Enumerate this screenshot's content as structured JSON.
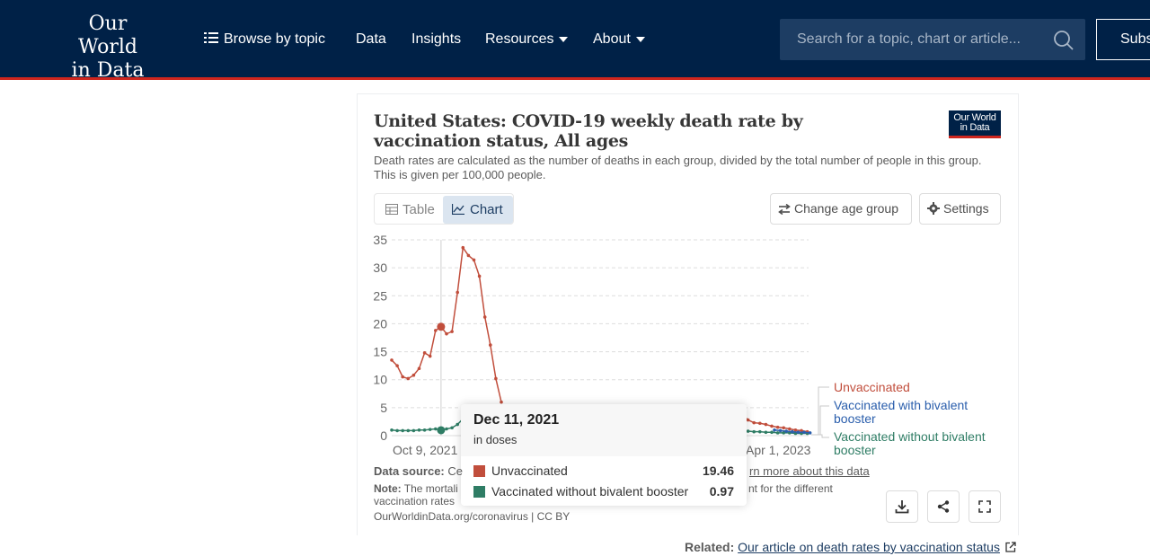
{
  "header": {
    "logo_line1": "Our World",
    "logo_line2": "in Data",
    "nav": {
      "browse": "Browse by topic",
      "data": "Data",
      "insights": "Insights",
      "resources": "Resources",
      "about": "About"
    },
    "search_placeholder": "Search for a topic, chart or article...",
    "subscribe": "Subscribe"
  },
  "card": {
    "title": "United States: COVID-19 weekly death rate by vaccination status, All ages",
    "subtitle": "Death rates are calculated as the number of deaths in each group, divided by the total number of people in this group. This is given per 100,000 people.",
    "badge_line1": "Our World",
    "badge_line2": "in Data",
    "tabs": {
      "table": "Table",
      "chart": "Chart"
    },
    "change_age_group": "Change age group",
    "settings": "Settings"
  },
  "chart_data": {
    "type": "line",
    "y_ticks": [
      "0",
      "5",
      "10",
      "15",
      "20",
      "25",
      "30",
      "35"
    ],
    "ylim": [
      0,
      35
    ],
    "x_ticks": [
      "Oct 9, 2021",
      "Apr 1, 2023"
    ],
    "grid": true,
    "legend_placement": "right",
    "series": [
      {
        "name": "Unvaccinated",
        "color": "#c14e3c",
        "values": [
          13.5,
          12.5,
          10.5,
          10.2,
          10.8,
          12.0,
          14.8,
          14.2,
          18.8,
          19.46,
          18.2,
          18.6,
          25.6,
          33.6,
          32.2,
          31.4,
          28.5,
          21.2,
          16.2,
          10.2,
          6.0
        ]
      },
      {
        "name": "Vaccinated with bivalent booster",
        "color": "#2a5eac",
        "values": [
          1.0,
          0.9,
          0.8,
          0.7,
          0.6,
          0.6,
          0.5
        ]
      },
      {
        "name": "Vaccinated without bivalent booster",
        "color": "#2f7d65",
        "values": [
          1.0,
          0.9,
          0.9,
          0.9,
          0.9,
          1.0,
          1.0,
          1.1,
          1.2,
          0.97,
          1.2,
          1.4,
          2.0,
          3.0,
          3.6
        ]
      }
    ],
    "tail_unvaccinated": [
      3.8,
      2.8,
      2.3,
      2.2,
      2.0,
      1.7,
      1.5,
      1.4,
      1.2,
      1.0,
      0.9,
      0.7
    ],
    "tail_without_bivalent": [
      0.9,
      0.8,
      0.7,
      0.7,
      0.6,
      0.6,
      0.5,
      0.5,
      0.5,
      0.4,
      0.4,
      0.4
    ],
    "legend": {
      "unvax": "Unvaccinated",
      "biv_line1": "Vaccinated with bivalent",
      "biv_line2": "booster",
      "nobiv_line1": "Vaccinated without bivalent",
      "nobiv_line2": "booster"
    }
  },
  "tooltip": {
    "date": "Dec 11, 2021",
    "unit": "in doses",
    "rows": [
      {
        "name": "Unvaccinated",
        "value": "19.46",
        "color": "#c14e3c"
      },
      {
        "name": "Vaccinated without bivalent booster",
        "value": "0.97",
        "color": "#2f7d65"
      }
    ]
  },
  "footer": {
    "source_label": "Data source:",
    "source_value": "Ce",
    "learn_more": "rn more about this data",
    "note_label": "Note:",
    "note_text": "The mortali",
    "note_tail": "nt for the different",
    "note_line2": "vaccination rates",
    "attribution": "OurWorldinData.org/coronavirus | CC BY",
    "related_label": "Related:",
    "related_link": "Our article on death rates by vaccination status"
  }
}
